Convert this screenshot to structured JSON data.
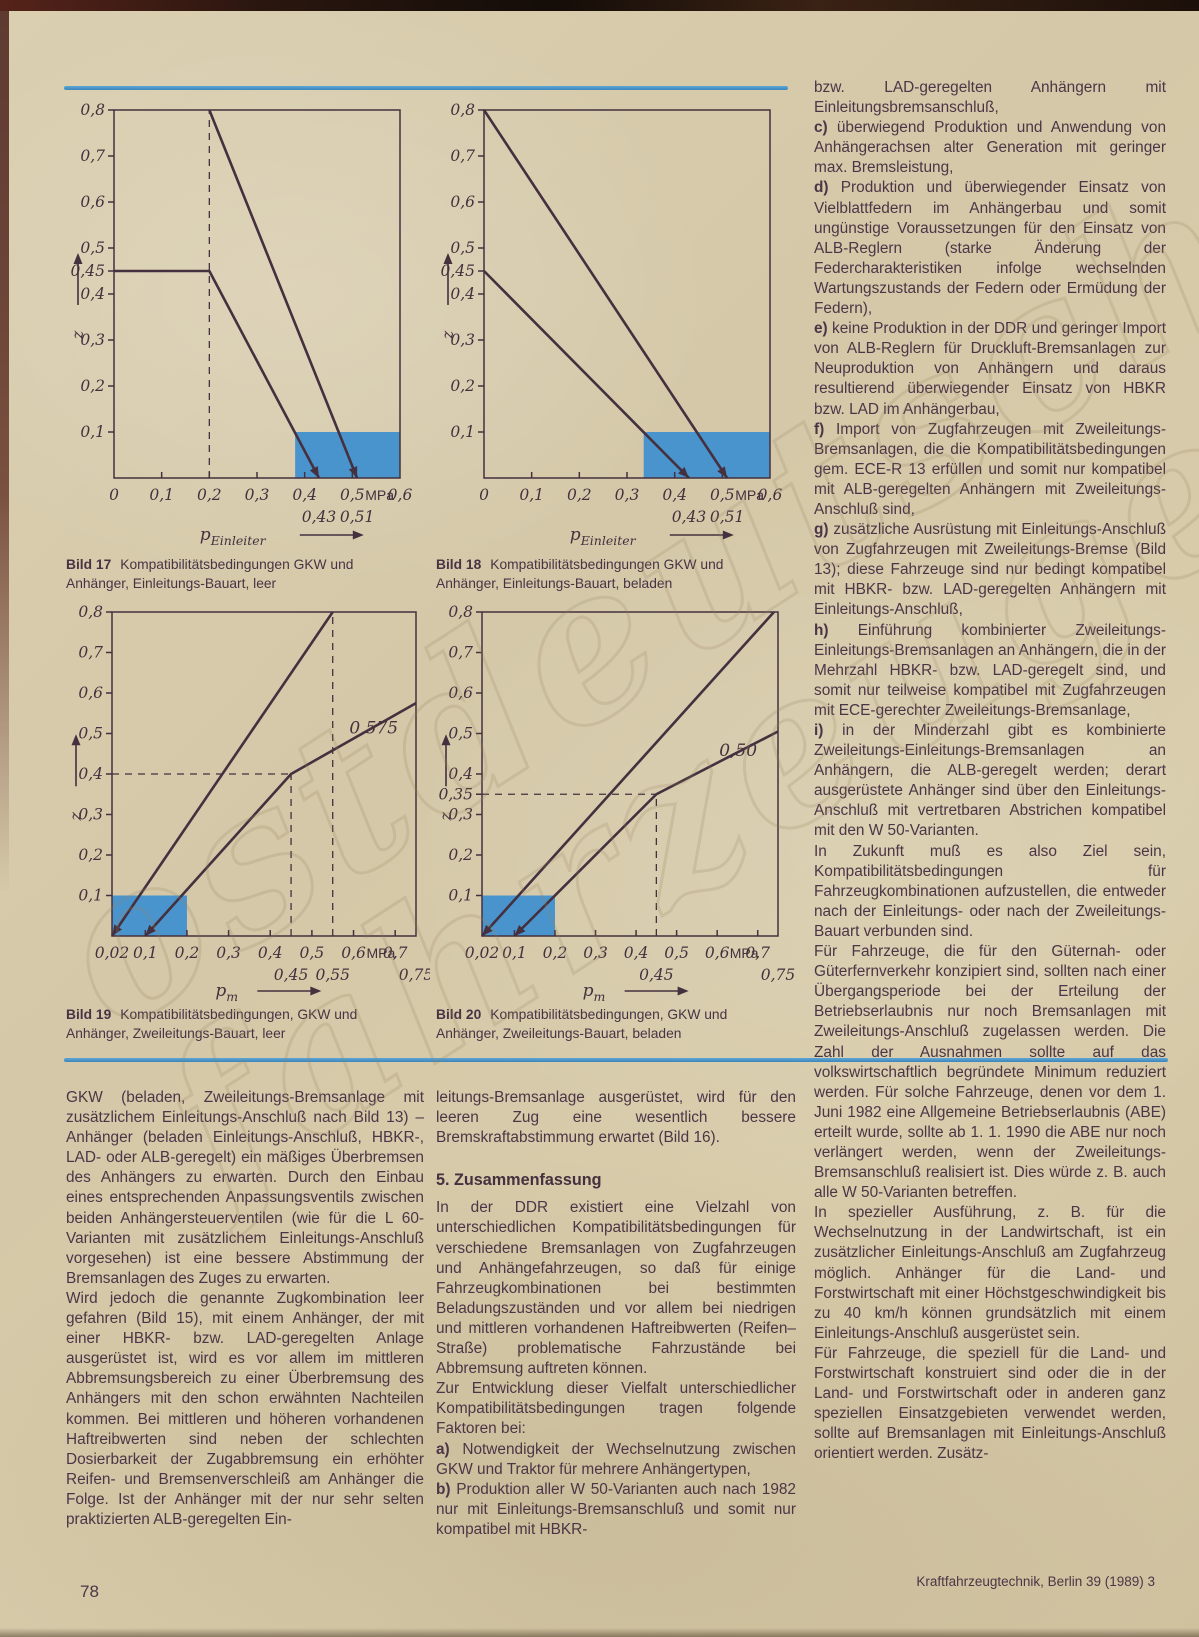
{
  "colors": {
    "ink": "#44303e",
    "blue": "#4a94ce",
    "rule_blue": "#4791c6",
    "paper": "#d5c9ab"
  },
  "page": {
    "number": "78",
    "footer": "Kraftfahrzeugtechnik, Berlin 39 (1989) 3",
    "watermark_line1": "ostdeutsche",
    "watermark_line2": "fahrzeuge"
  },
  "figures": [
    {
      "label": "Bild 17",
      "caption": "Kompatibilitätsbedingungen GKW und Anhänger, Einleitungs-Bauart, leer"
    },
    {
      "label": "Bild 18",
      "caption": "Kompatibilitätsbedingungen GKW und Anhänger, Einleitungs-Bauart, beladen"
    },
    {
      "label": "Bild 19",
      "caption": "Kompatibilitätsbedingungen, GKW und Anhänger, Zweileitungs-Bauart, leer"
    },
    {
      "label": "Bild 20",
      "caption": "Kompatibilitätsbedingungen, GKW und Anhänger, Zweileitungs-Bauart, beladen"
    }
  ],
  "chart_data": [
    {
      "type": "line",
      "title": "Bild 17 Kompatibilitätsbedingungen GKW und Anhänger, Einleitungs-Bauart, leer",
      "x_label": {
        "main": "p",
        "sub": "Einleiter"
      },
      "y_label": "z",
      "x_range": [
        0,
        0.6
      ],
      "y_range": [
        0,
        0.8
      ],
      "x_ticks": [
        {
          "v": 0,
          "t": "0"
        },
        {
          "v": 0.1,
          "t": "0,1"
        },
        {
          "v": 0.2,
          "t": "0,2"
        },
        {
          "v": 0.3,
          "t": "0,3"
        },
        {
          "v": 0.4,
          "t": "0,4"
        },
        {
          "v": 0.5,
          "t": "0,5"
        },
        {
          "v": 0.6,
          "t": "0,6"
        }
      ],
      "x_unit": {
        "v": 0.527,
        "t": "MPa"
      },
      "x_sub_ticks": [
        {
          "v": 0.43,
          "t": "0,43"
        },
        {
          "v": 0.51,
          "t": "0,51"
        }
      ],
      "y_ticks": [
        {
          "v": 0.1,
          "t": "0,1"
        },
        {
          "v": 0.2,
          "t": "0,2"
        },
        {
          "v": 0.3,
          "t": "0,3"
        },
        {
          "v": 0.4,
          "t": "0,4"
        },
        {
          "v": 0.45,
          "t": "0,45"
        },
        {
          "v": 0.5,
          "t": "0,5"
        },
        {
          "v": 0.6,
          "t": "0,6"
        },
        {
          "v": 0.7,
          "t": "0,7"
        },
        {
          "v": 0.8,
          "t": "0,8"
        }
      ],
      "series": [
        {
          "name": "line-1",
          "points": [
            [
              0.2,
              0.8
            ],
            [
              0.51,
              0
            ]
          ],
          "arrow": "end"
        },
        {
          "name": "line-2",
          "points": [
            [
              0,
              0.45
            ],
            [
              0.2,
              0.45
            ],
            [
              0.43,
              0
            ]
          ],
          "arrow": "end"
        }
      ],
      "guides": [
        [
          [
            0.2,
            0
          ],
          [
            0.2,
            0.8
          ]
        ]
      ],
      "shade": {
        "x": [
          0.38,
          0.6
        ],
        "y": [
          0,
          0.1
        ]
      },
      "annotations": []
    },
    {
      "type": "line",
      "title": "Bild 18 Kompatibilitätsbedingungen GKW und Anhänger, Einleitungs-Bauart, beladen",
      "x_label": {
        "main": "p",
        "sub": "Einleiter"
      },
      "y_label": "z",
      "x_range": [
        0,
        0.6
      ],
      "y_range": [
        0,
        0.8
      ],
      "x_ticks": [
        {
          "v": 0,
          "t": "0"
        },
        {
          "v": 0.1,
          "t": "0,1"
        },
        {
          "v": 0.2,
          "t": "0,2"
        },
        {
          "v": 0.3,
          "t": "0,3"
        },
        {
          "v": 0.4,
          "t": "0,4"
        },
        {
          "v": 0.5,
          "t": "0,5"
        },
        {
          "v": 0.6,
          "t": "0,6"
        }
      ],
      "x_unit": {
        "v": 0.527,
        "t": "MPa"
      },
      "x_sub_ticks": [
        {
          "v": 0.43,
          "t": "0,43"
        },
        {
          "v": 0.51,
          "t": "0,51"
        }
      ],
      "y_ticks": [
        {
          "v": 0.1,
          "t": "0,1"
        },
        {
          "v": 0.2,
          "t": "0,2"
        },
        {
          "v": 0.3,
          "t": "0,3"
        },
        {
          "v": 0.4,
          "t": "0,4"
        },
        {
          "v": 0.45,
          "t": "0,45"
        },
        {
          "v": 0.5,
          "t": "0,5"
        },
        {
          "v": 0.6,
          "t": "0,6"
        },
        {
          "v": 0.7,
          "t": "0,7"
        },
        {
          "v": 0.8,
          "t": "0,8"
        }
      ],
      "series": [
        {
          "name": "line-1",
          "points": [
            [
              0,
              0.8
            ],
            [
              0.51,
              0
            ]
          ],
          "arrow": "end"
        },
        {
          "name": "line-2",
          "points": [
            [
              0,
              0.45
            ],
            [
              0.43,
              0
            ]
          ],
          "arrow": "end"
        }
      ],
      "guides": [],
      "shade": {
        "x": [
          0.335,
          0.6
        ],
        "y": [
          0,
          0.1
        ]
      },
      "annotations": []
    },
    {
      "type": "line",
      "title": "Bild 19 Kompatibilitätsbedingungen, GKW und Anhänger, Zweileitungs-Bauart, leer",
      "x_label": {
        "main": "p",
        "sub": "m"
      },
      "y_label": "z",
      "x_range": [
        0.02,
        0.75
      ],
      "y_range": [
        0,
        0.8
      ],
      "x_ticks": [
        {
          "v": 0.02,
          "t": "0,02"
        },
        {
          "v": 0.1,
          "t": "0,1"
        },
        {
          "v": 0.2,
          "t": "0,2"
        },
        {
          "v": 0.3,
          "t": "0,3"
        },
        {
          "v": 0.4,
          "t": "0,4"
        },
        {
          "v": 0.5,
          "t": "0,5"
        },
        {
          "v": 0.6,
          "t": "0,6"
        },
        {
          "v": 0.7,
          "t": "0,7"
        }
      ],
      "x_unit": {
        "v": 0.631,
        "t": "MPa"
      },
      "x_sub_ticks": [
        {
          "v": 0.45,
          "t": "0,45"
        },
        {
          "v": 0.55,
          "t": "0,55"
        },
        {
          "v": 0.75,
          "t": "0,75"
        }
      ],
      "y_ticks": [
        {
          "v": 0.1,
          "t": "0,1"
        },
        {
          "v": 0.2,
          "t": "0,2"
        },
        {
          "v": 0.3,
          "t": "0,3"
        },
        {
          "v": 0.4,
          "t": "0,4"
        },
        {
          "v": 0.5,
          "t": "0,5"
        },
        {
          "v": 0.6,
          "t": "0,6"
        },
        {
          "v": 0.7,
          "t": "0,7"
        },
        {
          "v": 0.8,
          "t": "0,8"
        }
      ],
      "series": [
        {
          "name": "line-1",
          "points": [
            [
              0.02,
              0
            ],
            [
              0.55,
              0.8
            ]
          ],
          "arrow": "start"
        },
        {
          "name": "line-2",
          "points": [
            [
              0.1,
              0
            ],
            [
              0.45,
              0.4
            ],
            [
              0.75,
              0.575
            ]
          ],
          "arrow": "start"
        }
      ],
      "guides": [
        [
          [
            0.55,
            0
          ],
          [
            0.55,
            0.8
          ]
        ],
        [
          [
            0.45,
            0
          ],
          [
            0.45,
            0.4
          ]
        ],
        [
          [
            0.02,
            0.4
          ],
          [
            0.45,
            0.4
          ]
        ]
      ],
      "shade": {
        "x": [
          0.02,
          0.2
        ],
        "y": [
          0,
          0.1
        ]
      },
      "annotations": [
        {
          "x": 0.59,
          "y": 0.5,
          "t": "0,575"
        }
      ]
    },
    {
      "type": "line",
      "title": "Bild 20 Kompatibilitätsbedingungen, GKW und Anhänger, Zweileitungs-Bauart, beladen",
      "x_label": {
        "main": "p",
        "sub": "m"
      },
      "y_label": "z",
      "x_range": [
        0.02,
        0.75
      ],
      "y_range": [
        0,
        0.8
      ],
      "x_ticks": [
        {
          "v": 0.02,
          "t": "0,02"
        },
        {
          "v": 0.1,
          "t": "0,1"
        },
        {
          "v": 0.2,
          "t": "0,2"
        },
        {
          "v": 0.3,
          "t": "0,3"
        },
        {
          "v": 0.4,
          "t": "0,4"
        },
        {
          "v": 0.5,
          "t": "0,5"
        },
        {
          "v": 0.6,
          "t": "0,6"
        },
        {
          "v": 0.7,
          "t": "0,7"
        }
      ],
      "x_unit": {
        "v": 0.631,
        "t": "MPa"
      },
      "x_sub_ticks": [
        {
          "v": 0.45,
          "t": "0,45"
        },
        {
          "v": 0.75,
          "t": "0,75"
        }
      ],
      "y_ticks": [
        {
          "v": 0.1,
          "t": "0,1"
        },
        {
          "v": 0.2,
          "t": "0,2"
        },
        {
          "v": 0.3,
          "t": "0,3"
        },
        {
          "v": 0.35,
          "t": "0,35"
        },
        {
          "v": 0.4,
          "t": "0,4"
        },
        {
          "v": 0.5,
          "t": "0,5"
        },
        {
          "v": 0.6,
          "t": "0,6"
        },
        {
          "v": 0.7,
          "t": "0,7"
        },
        {
          "v": 0.8,
          "t": "0,8"
        }
      ],
      "series": [
        {
          "name": "line-1",
          "points": [
            [
              0.02,
              0
            ],
            [
              0.74,
              0.8
            ]
          ],
          "arrow": "start"
        },
        {
          "name": "line-2",
          "points": [
            [
              0.1,
              0
            ],
            [
              0.45,
              0.35
            ],
            [
              0.75,
              0.505
            ]
          ],
          "arrow": "start"
        }
      ],
      "guides": [
        [
          [
            0.02,
            0.35
          ],
          [
            0.45,
            0.35
          ]
        ],
        [
          [
            0.45,
            0
          ],
          [
            0.45,
            0.35
          ]
        ]
      ],
      "shade": {
        "x": [
          0.02,
          0.2
        ],
        "y": [
          0,
          0.1
        ]
      },
      "annotations": [
        {
          "x": 0.605,
          "y": 0.445,
          "t": "0,50"
        }
      ]
    }
  ],
  "columns": {
    "left": [
      {
        "text": "GKW (beladen, Zweileitungs-Bremsanlage mit zusätzlichem Einleitungs-Anschluß nach Bild 13) – Anhänger (beladen Einleitungs-Anschluß, HBKR-, LAD- oder ALB-geregelt) ein mäßiges Überbremsen des Anhängers zu erwarten. Durch den Einbau eines entsprechenden Anpassungsventils zwischen beiden Anhängersteuerventilen (wie für die L 60-Varianten mit zusätzlichem Einleitungs-Anschluß vorgesehen) ist eine bessere Abstimmung der Bremsanlagen des Zuges zu erwarten."
      },
      {
        "text": "Wird jedoch die genannte Zugkombination leer gefahren (Bild 15), mit einem Anhänger, der mit einer HBKR- bzw. LAD-geregelten Anlage ausgerüstet ist, wird es vor allem im mittleren Abbremsungsbereich zu einer Überbremsung des Anhängers mit den schon erwähnten Nachteilen kommen. Bei mittleren und höheren vorhandenen Haftreibwerten sind neben der schlechten Dosierbarkeit der Zugabbremsung ein erhöhter Reifen- und Bremsenverschleiß am Anhänger die Folge. Ist der Anhänger mit der nur sehr selten praktizierten ALB-geregelten Ein-"
      }
    ],
    "middle": [
      {
        "text": "leitungs-Bremsanlage ausgerüstet, wird für den leeren Zug eine wesentlich bessere Bremskraftabstimmung erwartet (Bild 16)."
      },
      {
        "heading": "5. Zusammenfassung"
      },
      {
        "text": "In der DDR existiert eine Vielzahl von unterschiedlichen Kompatibilitätsbedingungen für verschiedene Bremsanlagen von Zugfahrzeugen und Anhängefahrzeugen, so daß für einige Fahrzeugkombinationen bei bestimmten Beladungszuständen und vor allem bei niedrigen und mittleren vorhandenen Haftreibwerten (Reifen–Straße) problematische Fahrzustände bei Abbremsung auftreten können."
      },
      {
        "text": "Zur Entwicklung dieser Vielfalt unterschiedlicher Kompatibilitätsbedingungen tragen folgende Faktoren bei:"
      },
      {
        "lead": "a)",
        "text": "Notwendigkeit der Wechselnutzung zwischen GKW und Traktor für mehrere Anhängertypen,"
      },
      {
        "lead": "b)",
        "text": "Produktion aller W 50-Varianten auch nach 1982 nur mit Einleitungs-Bremsanschluß und somit nur kompatibel mit HBKR-"
      }
    ],
    "right": [
      {
        "text": "bzw. LAD-geregelten Anhängern mit Einleitungsbremsanschluß,"
      },
      {
        "lead": "c)",
        "text": "überwiegend Produktion und Anwendung von Anhängerachsen alter Generation mit geringer max. Bremsleistung,"
      },
      {
        "lead": "d)",
        "text": "Produktion und überwiegender Einsatz von Vielblattfedern im Anhängerbau und somit ungünstige Voraussetzungen für den Einsatz von ALB-Reglern (starke Änderung der Federcharakteristiken infolge wechselnden Wartungszustands der Federn oder Ermüdung der Federn),"
      },
      {
        "lead": "e)",
        "text": "keine Produktion in der DDR und geringer Import von ALB-Reglern für Druckluft-Bremsanlagen zur Neuproduktion von Anhängern und daraus resultierend überwiegender Einsatz von HBKR bzw. LAD im Anhängerbau,"
      },
      {
        "lead": "f)",
        "text": "Import von Zugfahrzeugen mit Zweileitungs-Bremsanlagen, die die Kompatibilitätsbedingungen gem. ECE-R 13 erfüllen und somit nur kompatibel mit ALB-geregelten Anhängern mit Zweileitungs-Anschluß sind,"
      },
      {
        "lead": "g)",
        "text": "zusätzliche Ausrüstung mit Einleitungs-Anschluß von Zugfahrzeugen mit Zweileitungs-Bremse (Bild 13); diese Fahrzeuge sind nur bedingt kompatibel mit HBKR- bzw. LAD-geregelten Anhängern mit Einleitungs-Anschluß,"
      },
      {
        "lead": "h)",
        "text": "Einführung kombinierter Zweileitungs-Einleitungs-Bremsanlagen an Anhängern, die in der Mehrzahl HBKR- bzw. LAD-geregelt sind, und somit nur teilweise kompatibel mit Zugfahrzeugen mit ECE-gerechter Zweileitungs-Bremsanlage,"
      },
      {
        "lead": "i)",
        "text": "in der Minderzahl gibt es kombinierte Zweileitungs-Einleitungs-Bremsanlagen an Anhängern, die ALB-geregelt werden; derart ausgerüstete Anhänger sind über den Einleitungs-Anschluß mit vertretbaren Abstrichen kompatibel mit den W 50-Varianten."
      },
      {
        "text": "In Zukunft muß es also Ziel sein, Kompatibilitätsbedingungen für Fahrzeugkombinationen aufzustellen, die entweder nach der Einleitungs- oder nach der Zweileitungs-Bauart verbunden sind."
      },
      {
        "text": "Für Fahrzeuge, die für den Güternah- oder Güterfernverkehr konzipiert sind, sollten nach einer Übergangsperiode bei der Erteilung der Betriebserlaubnis nur noch Bremsanlagen mit Zweileitungs-Anschluß zugelassen werden. Die Zahl der Ausnahmen sollte auf das volkswirtschaftlich begründete Minimum reduziert werden. Für solche Fahrzeuge, denen vor dem 1. Juni 1982 eine Allgemeine Betriebserlaubnis (ABE) erteilt wurde, sollte ab 1. 1. 1990 die ABE nur noch verlängert werden, wenn der Zweileitungs-Bremsanschluß realisiert ist. Dies würde z. B. auch alle W 50-Varianten betreffen."
      },
      {
        "text": "In spezieller Ausführung, z. B. für die Wechselnutzung in der Landwirtschaft, ist ein zusätzlicher Einleitungs-Anschluß am Zugfahrzeug möglich. Anhänger für die Land- und Forstwirtschaft mit einer Höchstgeschwindigkeit bis zu 40 km/h können grundsätzlich mit einem Einleitungs-Anschluß ausgerüstet sein."
      },
      {
        "text": "Für Fahrzeuge, die speziell für die Land- und Forstwirtschaft konstruiert sind oder die in der Land- und Forstwirtschaft oder in anderen ganz speziellen Einsatzgebieten verwendet werden, sollte auf Bremsanlagen mit Einleitungs-Anschluß orientiert werden. Zusätz-"
      }
    ]
  }
}
